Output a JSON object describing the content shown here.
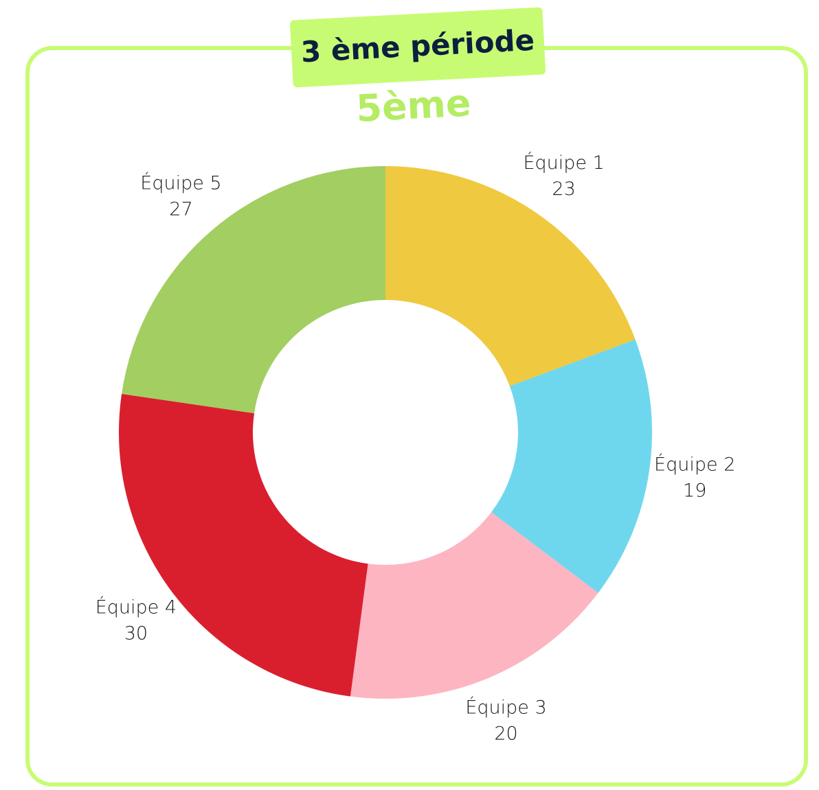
{
  "chart_data": {
    "type": "donut",
    "title": "3 ème période",
    "subtitle": "5ème",
    "categories": [
      "Équipe 1",
      "Équipe 2",
      "Équipe 3",
      "Équipe 4",
      "Équipe 5"
    ],
    "values": [
      23,
      19,
      20,
      30,
      27
    ],
    "colors": [
      "#efc940",
      "#6fd7ed",
      "#fdb5c2",
      "#d91f2e",
      "#a2ce62"
    ]
  }
}
